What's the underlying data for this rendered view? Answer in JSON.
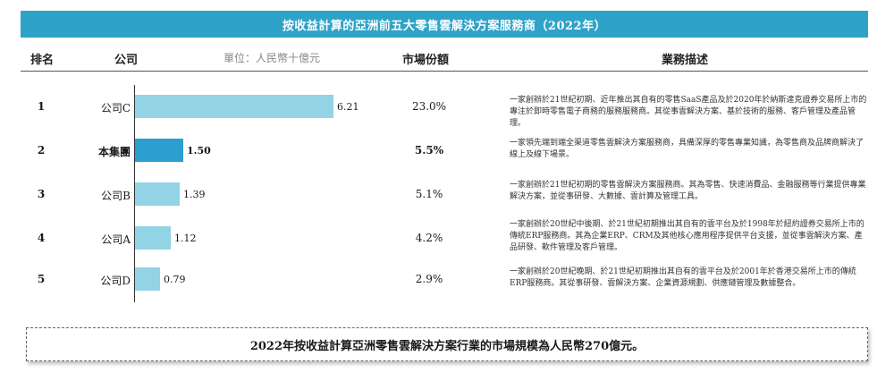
{
  "title": "按收益計算的亞洲前五大零售雲解決方案服務商（2022年）",
  "headers": {
    "rank": "排名",
    "company": "公司",
    "unit": "單位：人民幣十億元",
    "share": "市場份額",
    "business": "業務描述"
  },
  "chart_data": {
    "type": "bar",
    "orientation": "horizontal",
    "categories": [
      "公司C",
      "本集團",
      "公司B",
      "公司A",
      "公司D"
    ],
    "values": [
      6.21,
      1.5,
      1.39,
      1.12,
      0.79
    ],
    "value_labels": [
      "6.21",
      "1.50",
      "1.39",
      "1.12",
      "0.79"
    ],
    "unit": "單位：人民幣十億元",
    "highlight_index": 1,
    "colors": {
      "bar": "#92d3e6",
      "highlight": "#2a9fd0",
      "title_bg": "#2fa3c7"
    }
  },
  "rows": [
    {
      "rank": "1",
      "company": "公司C",
      "share": "23.0%",
      "highlight": false,
      "desc": "一家創辦於21世紀初期、近年推出其自有的零售SaaS產品及於2020年於納斯達克證券交易所上市的專注於即時零售電子商務的服務服務商。其從事雲解決方案、基於技術的服務、客戶管理及產品管理。"
    },
    {
      "rank": "2",
      "company": "本集團",
      "share": "5.5%",
      "highlight": true,
      "desc": "一家領先端到端全渠道零售雲解決方案服務商，具備深厚的零售專業知識，為零售商及品牌商解決了線上及線下場景。"
    },
    {
      "rank": "3",
      "company": "公司B",
      "share": "5.1%",
      "highlight": false,
      "desc": "一家創辦於21世紀初期的零售雲解決方案服務商。其為零售、快速消費品、金融服務等行業提供專業解決方案，並從事研發、大數據、雲計算及管理工具。"
    },
    {
      "rank": "4",
      "company": "公司A",
      "share": "4.2%",
      "highlight": false,
      "desc": "一家創辦於20世紀中後期、於21世紀初期推出其自有的雲平台及於1998年於紐約證券交易所上市的傳統ERP服務商。其為企業ERP、CRM及其他核心應用程序提供平台支援，並從事雲解決方案、產品研發、軟件管理及客戶管理。"
    },
    {
      "rank": "5",
      "company": "公司D",
      "share": "2.9%",
      "highlight": false,
      "desc": "一家創辦於20世紀晚期、於21世紀初期推出其自有的雲平台及於2001年於香港交易所上市的傳統ERP服務商。其從事研發、雲解決方案、企業資源規劃、供應鏈管理及數據整合。"
    }
  ],
  "footer": "2022年按收益計算亞洲零售雲解決方案行業的市場規模為人民幣270億元。"
}
